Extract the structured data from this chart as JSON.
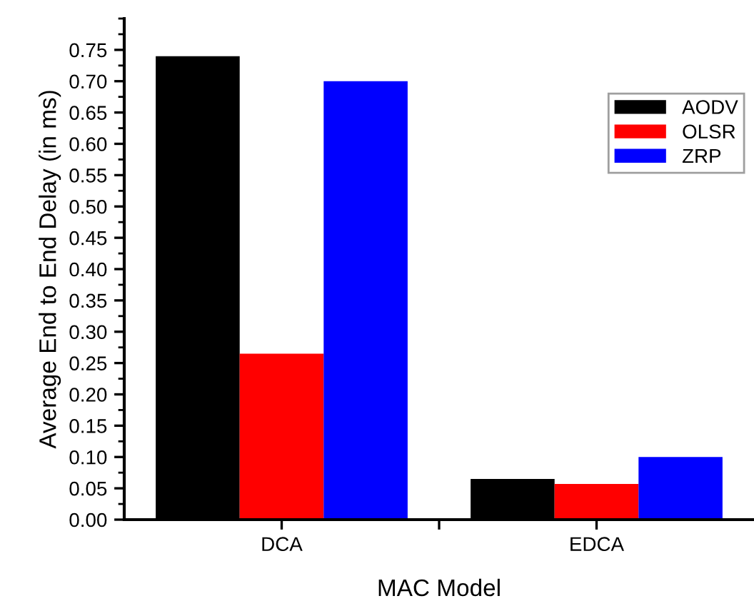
{
  "chart_data": {
    "type": "bar",
    "xlabel": "MAC Model",
    "ylabel": "Average End to End Delay (in ms)",
    "categories": [
      "DCA",
      "EDCA"
    ],
    "series": [
      {
        "name": "AODV",
        "color": "#000000",
        "values": [
          0.74,
          0.065
        ]
      },
      {
        "name": "OLSR",
        "color": "#ff0000",
        "values": [
          0.265,
          0.057
        ]
      },
      {
        "name": "ZRP",
        "color": "#0000ff",
        "values": [
          0.7,
          0.1
        ]
      }
    ],
    "ylim": [
      0,
      0.8
    ],
    "yticks": [
      {
        "value": 0,
        "label": "0.00"
      },
      {
        "value": 0.05,
        "label": "0.05"
      },
      {
        "value": 0.1,
        "label": "0.10"
      },
      {
        "value": 0.15,
        "label": "0.15"
      },
      {
        "value": 0.2,
        "label": "0.20"
      },
      {
        "value": 0.25,
        "label": "0.25"
      },
      {
        "value": 0.3,
        "label": "0.30"
      },
      {
        "value": 0.35,
        "label": "0.35"
      },
      {
        "value": 0.4,
        "label": "0.40"
      },
      {
        "value": 0.45,
        "label": "0.45"
      },
      {
        "value": 0.5,
        "label": "0.50"
      },
      {
        "value": 0.55,
        "label": "0.55"
      },
      {
        "value": 0.6,
        "label": "0.60"
      },
      {
        "value": 0.65,
        "label": "0.65"
      },
      {
        "value": 0.7,
        "label": "0.70"
      },
      {
        "value": 0.75,
        "label": "0.75"
      }
    ],
    "grid": false,
    "legend": "top right"
  }
}
